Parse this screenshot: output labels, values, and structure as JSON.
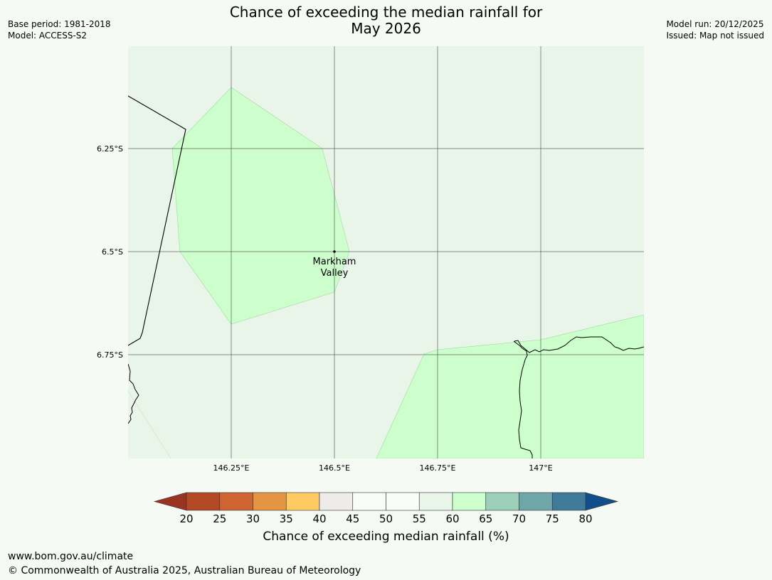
{
  "title": {
    "line1": "Chance of exceeding the median rainfall for",
    "line2": "May 2026"
  },
  "meta_left": {
    "base_period": "Base period: 1981-2018",
    "model": "Model: ACCESS-S2"
  },
  "meta_right": {
    "model_run": "Model run: 20/12/2025",
    "issued": "Issued: Map not issued"
  },
  "map": {
    "background_color": "#eaf5ea",
    "latitudes": [
      "6.25°S",
      "6.5°S",
      "6.75°S"
    ],
    "longitudes": [
      "146.25°E",
      "146.5°E",
      "146.75°E",
      "147°E"
    ],
    "place": {
      "name_line1": "Markham",
      "name_line2": "Valley"
    }
  },
  "colorbar": {
    "title": "Chance of exceeding median rainfall (%)",
    "ticks": [
      "20",
      "25",
      "30",
      "35",
      "40",
      "45",
      "50",
      "55",
      "60",
      "65",
      "70",
      "75",
      "80"
    ],
    "low_extend_color": "#993322",
    "high_extend_color": "#114e8a",
    "colors": [
      "#b34a25",
      "#cf6430",
      "#e39544",
      "#fecb62",
      "#efebe8",
      "#fafcfa",
      "#fafcfa",
      "#eaf5ea",
      "#ccffcc",
      "#9ccfb9",
      "#6fa6a8",
      "#3f7a98"
    ]
  },
  "footer": {
    "url": "www.bom.gov.au/climate",
    "copyright": "© Commonwealth of Australia 2025, Australian Bureau of Meteorology"
  }
}
